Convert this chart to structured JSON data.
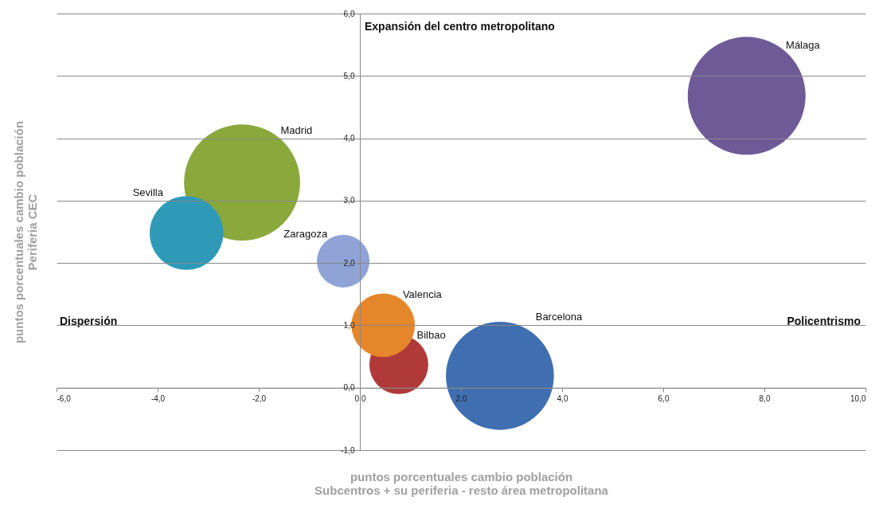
{
  "chart_data": {
    "type": "bubble",
    "xlabel": "puntos porcentuales cambio población\nSubcentros + su periferia - resto área metropolitana",
    "ylabel": "puntos porcentuales cambio población\nPeriferia CEC",
    "xlim": [
      -6,
      10
    ],
    "xticks": [
      {
        "value": -6,
        "label": "-6,0"
      },
      {
        "value": -4,
        "label": "-4,0"
      },
      {
        "value": -2,
        "label": "-2,0"
      },
      {
        "value": 0,
        "label": "0,0"
      },
      {
        "value": 2,
        "label": "2,0"
      },
      {
        "value": 4,
        "label": "4,0"
      },
      {
        "value": 6,
        "label": "6,0"
      },
      {
        "value": 8,
        "label": "8,0"
      },
      {
        "value": 10,
        "label": "10,0"
      }
    ],
    "ylim": [
      -1,
      6
    ],
    "yticks": [
      {
        "value": -1,
        "label": "-1,0"
      },
      {
        "value": 0,
        "label": "0,0"
      },
      {
        "value": 1,
        "label": "1,0"
      },
      {
        "value": 2,
        "label": "2,0"
      },
      {
        "value": 3,
        "label": "3,0"
      },
      {
        "value": 4,
        "label": "4,0"
      },
      {
        "value": 5,
        "label": "5,0"
      },
      {
        "value": 6,
        "label": "6,0"
      }
    ],
    "grid": "y",
    "annotations": [
      "Expansión del centro metropolitano",
      "Dispersión",
      "Policentrismo"
    ],
    "series": [
      {
        "name": "Madrid",
        "color": "#8aa83c",
        "x": [
          -2.33
        ],
        "values": [
          3.29
        ],
        "sizes": [
          0.97
        ]
      },
      {
        "name": "Sevilla",
        "color": "#2e9ab8",
        "x": [
          -3.43
        ],
        "values": [
          2.48
        ],
        "sizes": [
          0.39
        ]
      },
      {
        "name": "Zaragoza",
        "color": "#8fa3d6",
        "x": [
          -0.33
        ],
        "values": [
          2.03
        ],
        "sizes": [
          0.2
        ]
      },
      {
        "name": "Bilbao",
        "color": "#b03a3a",
        "x": [
          0.77
        ],
        "values": [
          0.37
        ],
        "sizes": [
          0.25
        ]
      },
      {
        "name": "Valencia",
        "color": "#e6862a",
        "x": [
          0.46
        ],
        "values": [
          1.0
        ],
        "sizes": [
          0.29
        ]
      },
      {
        "name": "Barcelona",
        "color": "#3f6fb0",
        "x": [
          2.77
        ],
        "values": [
          0.19
        ],
        "sizes": [
          0.84
        ]
      },
      {
        "name": "Málaga",
        "color": "#6e5a96",
        "x": [
          7.65
        ],
        "values": [
          4.68
        ],
        "sizes": [
          1
        ]
      }
    ]
  }
}
